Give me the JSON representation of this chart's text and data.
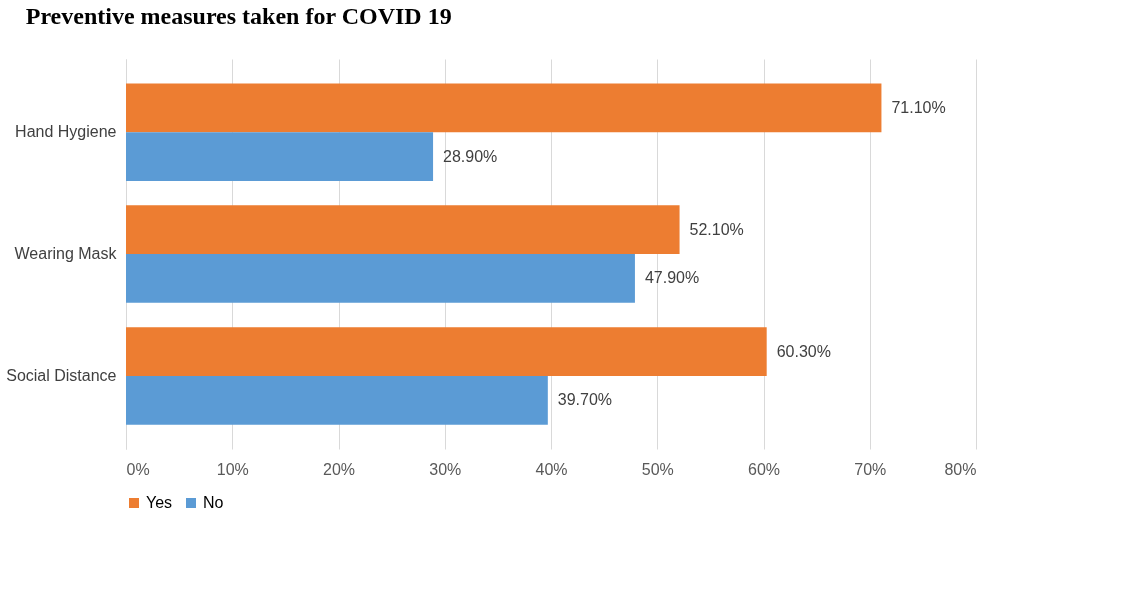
{
  "chart_data": {
    "type": "bar",
    "orientation": "horizontal",
    "title": "Preventive measures taken for COVID 19",
    "categories": [
      "Hand Hygiene",
      "Wearing Mask",
      "Social Distance"
    ],
    "series": [
      {
        "name": "Yes",
        "color": "#ed7d31",
        "values": [
          71.1,
          52.1,
          60.3
        ],
        "value_labels": [
          "71.10%",
          "52.10%",
          "60.30%"
        ]
      },
      {
        "name": "No",
        "color": "#5b9bd5",
        "values": [
          28.9,
          47.9,
          39.7
        ],
        "value_labels": [
          "28.90%",
          "47.90%",
          "39.70%"
        ]
      }
    ],
    "xlim": [
      0,
      80
    ],
    "xticks": [
      {
        "value": 0,
        "label": "0%"
      },
      {
        "value": 10,
        "label": "10%"
      },
      {
        "value": 20,
        "label": "20%"
      },
      {
        "value": 30,
        "label": "30%"
      },
      {
        "value": 40,
        "label": "40%"
      },
      {
        "value": 50,
        "label": "50%"
      },
      {
        "value": 60,
        "label": "60%"
      },
      {
        "value": 70,
        "label": "70%"
      },
      {
        "value": 80,
        "label": "80%"
      }
    ],
    "grid": "x",
    "legend": "bottom"
  }
}
